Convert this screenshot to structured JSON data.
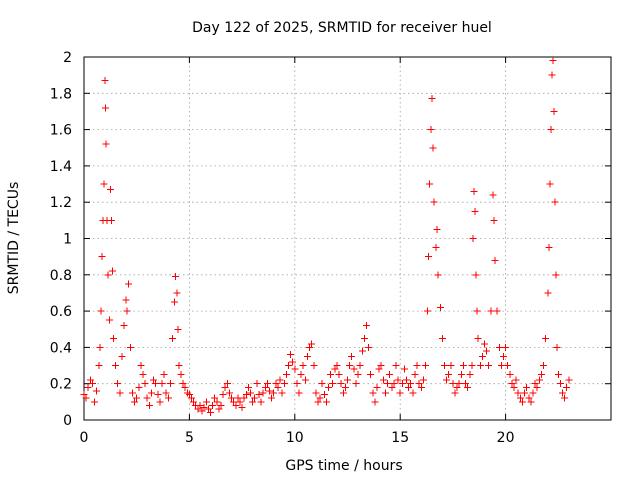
{
  "chart_data": {
    "type": "scatter",
    "title": "Day 122 of 2025, SRMTID for receiver huel",
    "xlabel": "GPS time / hours",
    "ylabel": "SRMTID / TECUs",
    "xlim": [
      0,
      25
    ],
    "ylim": [
      0,
      2
    ],
    "x_ticks": [
      0,
      5,
      10,
      15,
      20
    ],
    "y_ticks": [
      0,
      0.2,
      0.4,
      0.6,
      0.8,
      1,
      1.2,
      1.4,
      1.6,
      1.8,
      2
    ],
    "x_tick_labels": [
      "0",
      "5",
      "10",
      "15",
      "20"
    ],
    "y_tick_labels": [
      "0",
      "0.2",
      "0.4",
      "0.6",
      "0.8",
      "1",
      "1.2",
      "1.4",
      "1.6",
      "1.8",
      "2"
    ],
    "grid": true,
    "marker": "+",
    "marker_color": "#ff0000",
    "series": [
      {
        "name": "SRMTID",
        "points": [
          [
            0.0,
            0.14
          ],
          [
            0.1,
            0.12
          ],
          [
            0.2,
            0.18
          ],
          [
            0.3,
            0.22
          ],
          [
            0.4,
            0.2
          ],
          [
            0.5,
            0.1
          ],
          [
            0.6,
            0.16
          ],
          [
            0.7,
            0.3
          ],
          [
            0.75,
            0.4
          ],
          [
            0.8,
            0.6
          ],
          [
            0.85,
            0.9
          ],
          [
            0.9,
            1.1
          ],
          [
            0.95,
            1.3
          ],
          [
            1.0,
            1.87
          ],
          [
            1.02,
            1.72
          ],
          [
            1.05,
            1.52
          ],
          [
            1.1,
            1.1
          ],
          [
            1.15,
            0.8
          ],
          [
            1.2,
            0.55
          ],
          [
            1.25,
            1.27
          ],
          [
            1.3,
            1.1
          ],
          [
            1.35,
            0.82
          ],
          [
            1.4,
            0.45
          ],
          [
            1.5,
            0.3
          ],
          [
            1.6,
            0.2
          ],
          [
            1.7,
            0.15
          ],
          [
            1.8,
            0.35
          ],
          [
            1.9,
            0.52
          ],
          [
            2.0,
            0.66
          ],
          [
            2.05,
            0.6
          ],
          [
            2.1,
            0.75
          ],
          [
            2.2,
            0.4
          ],
          [
            2.3,
            0.15
          ],
          [
            2.4,
            0.1
          ],
          [
            2.5,
            0.12
          ],
          [
            2.6,
            0.18
          ],
          [
            2.7,
            0.3
          ],
          [
            2.8,
            0.25
          ],
          [
            2.9,
            0.2
          ],
          [
            3.0,
            0.12
          ],
          [
            3.1,
            0.08
          ],
          [
            3.2,
            0.15
          ],
          [
            3.3,
            0.22
          ],
          [
            3.4,
            0.2
          ],
          [
            3.5,
            0.14
          ],
          [
            3.6,
            0.1
          ],
          [
            3.7,
            0.2
          ],
          [
            3.8,
            0.25
          ],
          [
            3.9,
            0.15
          ],
          [
            4.0,
            0.12
          ],
          [
            4.1,
            0.2
          ],
          [
            4.2,
            0.45
          ],
          [
            4.3,
            0.65
          ],
          [
            4.35,
            0.79
          ],
          [
            4.4,
            0.7
          ],
          [
            4.45,
            0.5
          ],
          [
            4.5,
            0.3
          ],
          [
            4.6,
            0.25
          ],
          [
            4.7,
            0.2
          ],
          [
            4.8,
            0.18
          ],
          [
            4.9,
            0.15
          ],
          [
            5.0,
            0.14
          ],
          [
            5.1,
            0.12
          ],
          [
            5.2,
            0.1
          ],
          [
            5.3,
            0.08
          ],
          [
            5.4,
            0.06
          ],
          [
            5.5,
            0.08
          ],
          [
            5.6,
            0.05
          ],
          [
            5.7,
            0.07
          ],
          [
            5.8,
            0.1
          ],
          [
            5.9,
            0.06
          ],
          [
            6.0,
            0.04
          ],
          [
            6.1,
            0.08
          ],
          [
            6.2,
            0.12
          ],
          [
            6.3,
            0.1
          ],
          [
            6.4,
            0.06
          ],
          [
            6.5,
            0.08
          ],
          [
            6.6,
            0.14
          ],
          [
            6.7,
            0.18
          ],
          [
            6.8,
            0.2
          ],
          [
            6.9,
            0.15
          ],
          [
            7.0,
            0.12
          ],
          [
            7.1,
            0.1
          ],
          [
            7.2,
            0.08
          ],
          [
            7.3,
            0.12
          ],
          [
            7.4,
            0.1
          ],
          [
            7.5,
            0.07
          ],
          [
            7.6,
            0.12
          ],
          [
            7.7,
            0.14
          ],
          [
            7.8,
            0.18
          ],
          [
            7.9,
            0.15
          ],
          [
            8.0,
            0.1
          ],
          [
            8.1,
            0.12
          ],
          [
            8.2,
            0.2
          ],
          [
            8.3,
            0.14
          ],
          [
            8.4,
            0.1
          ],
          [
            8.5,
            0.15
          ],
          [
            8.6,
            0.18
          ],
          [
            8.7,
            0.2
          ],
          [
            8.8,
            0.16
          ],
          [
            8.9,
            0.12
          ],
          [
            9.0,
            0.15
          ],
          [
            9.1,
            0.2
          ],
          [
            9.2,
            0.18
          ],
          [
            9.3,
            0.22
          ],
          [
            9.4,
            0.15
          ],
          [
            9.5,
            0.2
          ],
          [
            9.6,
            0.25
          ],
          [
            9.7,
            0.3
          ],
          [
            9.8,
            0.36
          ],
          [
            9.9,
            0.32
          ],
          [
            10.0,
            0.28
          ],
          [
            10.1,
            0.2
          ],
          [
            10.2,
            0.15
          ],
          [
            10.3,
            0.25
          ],
          [
            10.4,
            0.3
          ],
          [
            10.5,
            0.22
          ],
          [
            10.6,
            0.35
          ],
          [
            10.7,
            0.4
          ],
          [
            10.8,
            0.42
          ],
          [
            10.9,
            0.3
          ],
          [
            11.0,
            0.15
          ],
          [
            11.1,
            0.1
          ],
          [
            11.2,
            0.12
          ],
          [
            11.3,
            0.2
          ],
          [
            11.4,
            0.14
          ],
          [
            11.5,
            0.1
          ],
          [
            11.6,
            0.18
          ],
          [
            11.7,
            0.25
          ],
          [
            11.8,
            0.2
          ],
          [
            11.9,
            0.28
          ],
          [
            12.0,
            0.3
          ],
          [
            12.1,
            0.25
          ],
          [
            12.2,
            0.2
          ],
          [
            12.3,
            0.15
          ],
          [
            12.4,
            0.18
          ],
          [
            12.5,
            0.22
          ],
          [
            12.6,
            0.3
          ],
          [
            12.7,
            0.35
          ],
          [
            12.8,
            0.28
          ],
          [
            12.9,
            0.2
          ],
          [
            13.0,
            0.25
          ],
          [
            13.1,
            0.3
          ],
          [
            13.2,
            0.38
          ],
          [
            13.3,
            0.45
          ],
          [
            13.4,
            0.52
          ],
          [
            13.5,
            0.4
          ],
          [
            13.6,
            0.25
          ],
          [
            13.7,
            0.15
          ],
          [
            13.8,
            0.1
          ],
          [
            13.9,
            0.18
          ],
          [
            14.0,
            0.28
          ],
          [
            14.1,
            0.3
          ],
          [
            14.2,
            0.22
          ],
          [
            14.3,
            0.15
          ],
          [
            14.4,
            0.2
          ],
          [
            14.5,
            0.25
          ],
          [
            14.6,
            0.18
          ],
          [
            14.7,
            0.2
          ],
          [
            14.8,
            0.3
          ],
          [
            14.9,
            0.22
          ],
          [
            15.0,
            0.15
          ],
          [
            15.1,
            0.2
          ],
          [
            15.2,
            0.28
          ],
          [
            15.3,
            0.22
          ],
          [
            15.4,
            0.18
          ],
          [
            15.5,
            0.2
          ],
          [
            15.6,
            0.15
          ],
          [
            15.7,
            0.25
          ],
          [
            15.8,
            0.3
          ],
          [
            15.9,
            0.2
          ],
          [
            16.0,
            0.18
          ],
          [
            16.1,
            0.22
          ],
          [
            16.2,
            0.3
          ],
          [
            16.3,
            0.6
          ],
          [
            16.35,
            0.9
          ],
          [
            16.4,
            1.3
          ],
          [
            16.45,
            1.6
          ],
          [
            16.5,
            1.77
          ],
          [
            16.55,
            1.5
          ],
          [
            16.6,
            1.2
          ],
          [
            16.7,
            0.95
          ],
          [
            16.75,
            1.05
          ],
          [
            16.8,
            0.8
          ],
          [
            16.9,
            0.62
          ],
          [
            17.0,
            0.45
          ],
          [
            17.1,
            0.3
          ],
          [
            17.2,
            0.22
          ],
          [
            17.3,
            0.25
          ],
          [
            17.4,
            0.3
          ],
          [
            17.5,
            0.2
          ],
          [
            17.6,
            0.15
          ],
          [
            17.7,
            0.18
          ],
          [
            17.8,
            0.2
          ],
          [
            17.9,
            0.25
          ],
          [
            18.0,
            0.3
          ],
          [
            18.1,
            0.2
          ],
          [
            18.2,
            0.18
          ],
          [
            18.3,
            0.25
          ],
          [
            18.4,
            0.3
          ],
          [
            18.45,
            1.0
          ],
          [
            18.5,
            1.26
          ],
          [
            18.55,
            1.15
          ],
          [
            18.6,
            0.8
          ],
          [
            18.65,
            0.6
          ],
          [
            18.7,
            0.45
          ],
          [
            18.8,
            0.3
          ],
          [
            18.9,
            0.35
          ],
          [
            19.0,
            0.42
          ],
          [
            19.1,
            0.38
          ],
          [
            19.2,
            0.3
          ],
          [
            19.3,
            0.6
          ],
          [
            19.4,
            1.24
          ],
          [
            19.45,
            1.1
          ],
          [
            19.5,
            0.88
          ],
          [
            19.6,
            0.6
          ],
          [
            19.7,
            0.4
          ],
          [
            19.8,
            0.3
          ],
          [
            19.9,
            0.35
          ],
          [
            20.0,
            0.4
          ],
          [
            20.1,
            0.3
          ],
          [
            20.2,
            0.25
          ],
          [
            20.3,
            0.2
          ],
          [
            20.4,
            0.18
          ],
          [
            20.5,
            0.22
          ],
          [
            20.6,
            0.15
          ],
          [
            20.7,
            0.12
          ],
          [
            20.8,
            0.1
          ],
          [
            20.9,
            0.15
          ],
          [
            21.0,
            0.18
          ],
          [
            21.1,
            0.12
          ],
          [
            21.2,
            0.1
          ],
          [
            21.3,
            0.15
          ],
          [
            21.4,
            0.2
          ],
          [
            21.5,
            0.18
          ],
          [
            21.6,
            0.22
          ],
          [
            21.7,
            0.25
          ],
          [
            21.8,
            0.3
          ],
          [
            21.9,
            0.45
          ],
          [
            22.0,
            0.7
          ],
          [
            22.05,
            0.95
          ],
          [
            22.1,
            1.3
          ],
          [
            22.15,
            1.6
          ],
          [
            22.2,
            1.9
          ],
          [
            22.25,
            1.98
          ],
          [
            22.3,
            1.7
          ],
          [
            22.35,
            1.2
          ],
          [
            22.4,
            0.8
          ],
          [
            22.45,
            0.4
          ],
          [
            22.5,
            0.25
          ],
          [
            22.6,
            0.2
          ],
          [
            22.7,
            0.15
          ],
          [
            22.8,
            0.12
          ],
          [
            22.9,
            0.18
          ],
          [
            23.0,
            0.22
          ]
        ]
      }
    ]
  }
}
